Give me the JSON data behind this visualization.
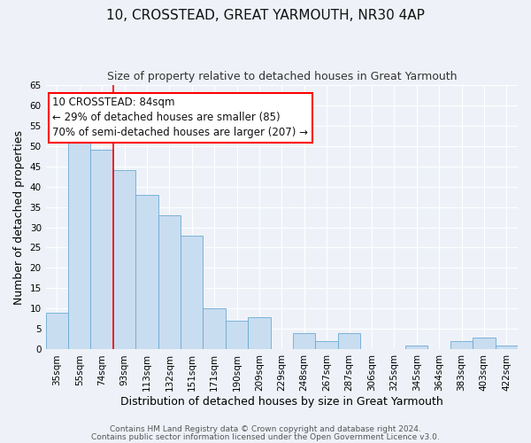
{
  "title": "10, CROSSTEAD, GREAT YARMOUTH, NR30 4AP",
  "subtitle": "Size of property relative to detached houses in Great Yarmouth",
  "xlabel": "Distribution of detached houses by size in Great Yarmouth",
  "ylabel": "Number of detached properties",
  "bin_labels": [
    "35sqm",
    "55sqm",
    "74sqm",
    "93sqm",
    "113sqm",
    "132sqm",
    "151sqm",
    "171sqm",
    "190sqm",
    "209sqm",
    "229sqm",
    "248sqm",
    "267sqm",
    "287sqm",
    "306sqm",
    "325sqm",
    "345sqm",
    "364sqm",
    "383sqm",
    "403sqm",
    "422sqm"
  ],
  "bar_values": [
    9,
    54,
    49,
    44,
    38,
    33,
    28,
    10,
    7,
    8,
    0,
    4,
    2,
    4,
    0,
    0,
    1,
    0,
    2,
    3,
    1
  ],
  "bar_color": "#c9ddf0",
  "bar_edge_color": "#6aaad4",
  "red_line_x": 3.0,
  "ylim": [
    0,
    65
  ],
  "yticks": [
    0,
    5,
    10,
    15,
    20,
    25,
    30,
    35,
    40,
    45,
    50,
    55,
    60,
    65
  ],
  "annotation_line1": "10 CROSSTEAD: 84sqm",
  "annotation_line2": "← 29% of detached houses are smaller (85)",
  "annotation_line3": "70% of semi-detached houses are larger (207) →",
  "footer_line1": "Contains HM Land Registry data © Crown copyright and database right 2024.",
  "footer_line2": "Contains public sector information licensed under the Open Government Licence v3.0.",
  "bg_color": "#eef2f8",
  "grid_color": "#ffffff",
  "title_fontsize": 11,
  "subtitle_fontsize": 9,
  "axis_label_fontsize": 9,
  "tick_fontsize": 7.5,
  "annotation_fontsize": 8.5,
  "footer_fontsize": 6.5
}
